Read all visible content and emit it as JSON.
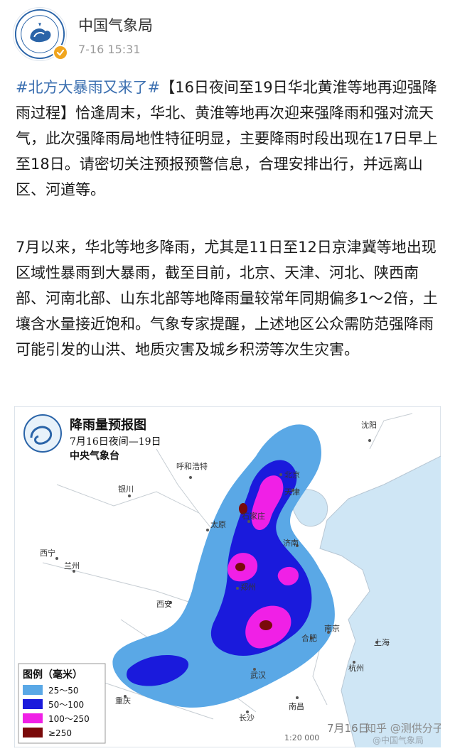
{
  "post": {
    "author": "中国气象局",
    "time": "7-16 15:31",
    "hashtag": "#北方大暴雨又来了#",
    "paragraph1": "【16日夜间至19日华北黄淮等地再迎强降雨过程】恰逢周末，华北、黄淮等地再次迎来强降雨和强对流天气，此次强降雨局地性特征明显，主要降雨时段出现在17日早上至18日。请密切关注预报预警信息，合理安排出行，并远离山区、河道等。",
    "paragraph2": "7月以来，华北等地多降雨，尤其是11日至12日京津冀等地出现区域性暴雨到大暴雨，截至目前，北京、天津、河北、陕西南部、河南北部、山东北部等地降雨量较常年同期偏多1～2倍，土壤含水量接近饱和。气象专家提醒，上述地区公众需防范强降雨可能引发的山洪、地质灾害及城乡积涝等次生灾害。"
  },
  "map": {
    "title": "降雨量预报图",
    "subtitle": "7月16日夜间—19日",
    "issuer": "中央气象台",
    "cities": {
      "shenyang": "沈阳",
      "hohhot": "呼和浩特",
      "beijing": "北京",
      "tianjin": "天津",
      "yinchuan": "银川",
      "taiyuan": "太原",
      "shijiazhuang": "石家庄",
      "jinan": "济南",
      "xining": "西宁",
      "lanzhou": "兰州",
      "zhengzhou": "郑州",
      "xian": "西安",
      "hefei": "合肥",
      "nanjing": "南京",
      "shanghai": "上海",
      "wuhan": "武汉",
      "hangzhou": "杭州",
      "chongqing": "重庆",
      "changsha": "长沙",
      "nanchang": "南昌"
    },
    "legend": {
      "title": "图例（毫米）",
      "items": [
        {
          "label": "25～50",
          "color": "#5aa8e6"
        },
        {
          "label": "50～100",
          "color": "#1a1adc"
        },
        {
          "label": "100～250",
          "color": "#f020e6"
        },
        {
          "label": "≥250",
          "color": "#7a0a0a"
        }
      ]
    },
    "date_stamp": "7月16日",
    "watermark": "知乎 @测供分子",
    "watermark2": "@中国气象局",
    "scale": "1:20 000"
  },
  "colors": {
    "hashtag": "#3b6fb0",
    "sea": "#cfe6f5",
    "land": "#ffffff",
    "rain_25_50": "#5aa8e6",
    "rain_50_100": "#1a1adc",
    "rain_100_250": "#f020e6",
    "rain_250": "#7a0a0a"
  }
}
